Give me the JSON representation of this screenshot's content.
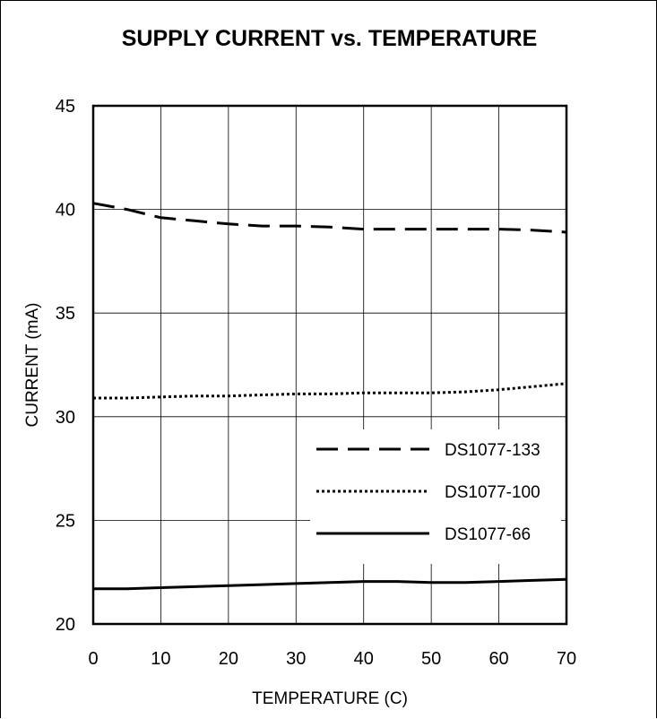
{
  "chart_data": {
    "type": "line",
    "title": "SUPPLY CURRENT vs. TEMPERATURE",
    "xlabel": "TEMPERATURE (C)",
    "ylabel": "CURRENT (mA)",
    "xlim": [
      0,
      70
    ],
    "ylim": [
      20,
      45
    ],
    "xticks": [
      0,
      10,
      20,
      30,
      40,
      50,
      60,
      70
    ],
    "yticks": [
      20,
      25,
      30,
      35,
      40,
      45
    ],
    "grid": true,
    "legend_position": "right",
    "series": [
      {
        "name": "DS1077-133",
        "style": "dashed",
        "x": [
          0,
          5,
          10,
          15,
          20,
          25,
          30,
          35,
          40,
          45,
          50,
          55,
          60,
          65,
          70
        ],
        "y": [
          40.3,
          40.0,
          39.6,
          39.45,
          39.3,
          39.2,
          39.2,
          39.15,
          39.05,
          39.05,
          39.05,
          39.05,
          39.05,
          39.0,
          38.9
        ]
      },
      {
        "name": "DS1077-100",
        "style": "dotted",
        "x": [
          0,
          5,
          10,
          15,
          20,
          25,
          30,
          35,
          40,
          45,
          50,
          55,
          60,
          65,
          70
        ],
        "y": [
          30.9,
          30.9,
          30.95,
          31.0,
          31.0,
          31.05,
          31.1,
          31.1,
          31.15,
          31.15,
          31.15,
          31.2,
          31.3,
          31.45,
          31.6
        ]
      },
      {
        "name": "DS1077-66",
        "style": "solid",
        "x": [
          0,
          5,
          10,
          15,
          20,
          25,
          30,
          35,
          40,
          45,
          50,
          55,
          60,
          65,
          70
        ],
        "y": [
          21.7,
          21.7,
          21.75,
          21.8,
          21.85,
          21.9,
          21.95,
          22.0,
          22.05,
          22.05,
          22.0,
          22.0,
          22.05,
          22.1,
          22.15
        ]
      }
    ]
  }
}
